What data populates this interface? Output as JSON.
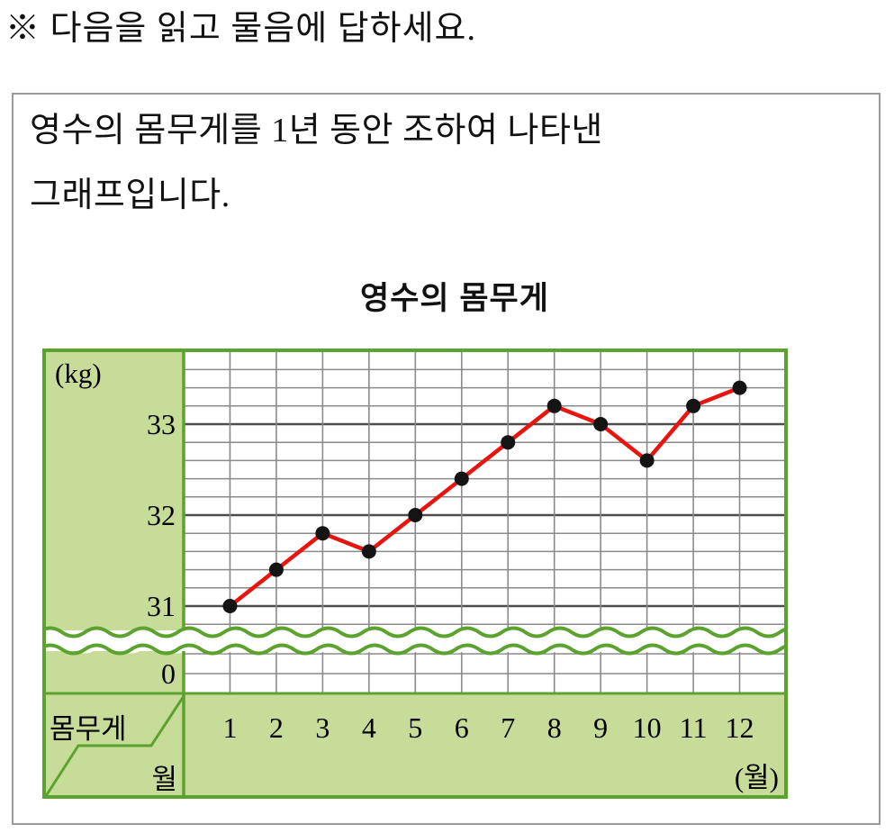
{
  "instruction": "※ 다음을 읽고 물음에 답하세요.",
  "problem": {
    "description_line1": "영수의 몸무게를 1년 동안 조하여 나타낸",
    "description_line2": "그래프입니다."
  },
  "chart_data": {
    "type": "line",
    "title": "영수의 몸무게",
    "y_unit_label": "(kg)",
    "x_unit_label": "(월)",
    "corner_row_label": "몸무게",
    "corner_col_label": "월",
    "zero_label": "0",
    "y_ticks": [
      33,
      32,
      31
    ],
    "y_tick_top_value": 33,
    "ylim_top": 33.8,
    "minor_step": 0.2,
    "axis_break": true,
    "grid": true,
    "x": [
      1,
      2,
      3,
      4,
      5,
      6,
      7,
      8,
      9,
      10,
      11,
      12
    ],
    "values": [
      31.0,
      31.4,
      31.8,
      31.6,
      32.0,
      32.4,
      32.8,
      33.2,
      33.0,
      32.6,
      33.2,
      33.4
    ],
    "xlabel": "월",
    "ylabel": "kg",
    "colors": {
      "frame_green": "#5ba32e",
      "fill_green": "#c8dc99",
      "grid_minor": "#8a8a8a",
      "grid_major": "#4d4d4d",
      "line_red": "#e8150f",
      "point_black": "#141414"
    }
  }
}
